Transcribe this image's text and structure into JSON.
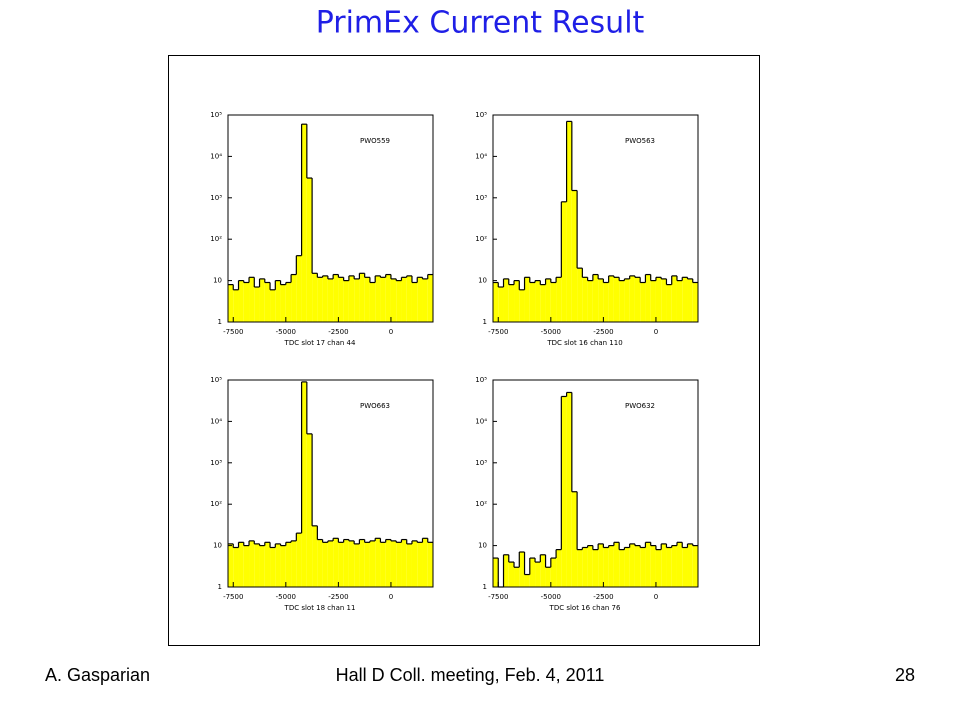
{
  "slide": {
    "title": "PrimEx Current Result",
    "footer": {
      "left": "A. Gasparian",
      "center": "Hall D Coll. meeting, Feb. 4, 2011",
      "right": "28"
    }
  },
  "chart_data": [
    {
      "type": "histogram",
      "title": "PWO559",
      "x_label": "TDC slot 17 chan 44",
      "color": "#ffff00",
      "log_y": true,
      "bins": [
        -7750,
        -7500,
        -7250,
        -7000,
        -6750,
        -6500,
        -6250,
        -6000,
        -5750,
        -5500,
        -5250,
        -5000,
        -4750,
        -4500,
        -4250,
        -4000,
        -3750,
        -3500,
        -3250,
        -3000,
        -2750,
        -2500,
        -2250,
        -2000,
        -1750,
        -1500,
        -1250,
        -1000,
        -750,
        -500,
        -250,
        0,
        250,
        500,
        750,
        1000,
        1250,
        1500,
        1750,
        2000
      ],
      "values": [
        8,
        6,
        10,
        9,
        12,
        7,
        11,
        9,
        6,
        10,
        8,
        9,
        14,
        40,
        60000,
        3000,
        15,
        12,
        13,
        11,
        14,
        12,
        10,
        13,
        11,
        15,
        12,
        9,
        13,
        12,
        14,
        11,
        10,
        12,
        13,
        9,
        12,
        11,
        14
      ],
      "xlim": [
        -7750,
        2000
      ],
      "xticks": [
        -7500,
        -5000,
        -2500,
        0
      ],
      "ylim": [
        1,
        100000
      ],
      "yticks": [
        1,
        10,
        {
          "value": 100,
          "label": "10²"
        },
        {
          "value": 1000,
          "label": "10³"
        },
        {
          "value": 10000,
          "label": "10⁴"
        },
        {
          "value": 100000,
          "label": "10⁵"
        }
      ]
    },
    {
      "type": "histogram",
      "title": "PWO563",
      "x_label": "TDC slot 16 chan 110",
      "color": "#ffff00",
      "log_y": true,
      "bins": [
        -7750,
        -7500,
        -7250,
        -7000,
        -6750,
        -6500,
        -6250,
        -6000,
        -5750,
        -5500,
        -5250,
        -5000,
        -4750,
        -4500,
        -4250,
        -4000,
        -3750,
        -3500,
        -3250,
        -3000,
        -2750,
        -2500,
        -2250,
        -2000,
        -1750,
        -1500,
        -1250,
        -1000,
        -750,
        -500,
        -250,
        0,
        250,
        500,
        750,
        1000,
        1250,
        1500,
        1750,
        2000
      ],
      "values": [
        9,
        7,
        11,
        8,
        10,
        6,
        12,
        9,
        10,
        8,
        11,
        9,
        12,
        800,
        70000,
        1500,
        20,
        12,
        10,
        14,
        11,
        9,
        13,
        12,
        10,
        11,
        13,
        12,
        9,
        14,
        10,
        12,
        11,
        8,
        13,
        10,
        12,
        11,
        9
      ],
      "xlim": [
        -7750,
        2000
      ],
      "xticks": [
        -7500,
        -5000,
        -2500,
        0
      ],
      "ylim": [
        1,
        100000
      ],
      "yticks": [
        1,
        10,
        {
          "value": 100,
          "label": "10²"
        },
        {
          "value": 1000,
          "label": "10³"
        },
        {
          "value": 10000,
          "label": "10⁴"
        },
        {
          "value": 100000,
          "label": "10⁵"
        }
      ]
    },
    {
      "type": "histogram",
      "title": "PWO663",
      "x_label": "TDC slot 18 chan 11",
      "color": "#ffff00",
      "log_y": true,
      "bins": [
        -7750,
        -7500,
        -7250,
        -7000,
        -6750,
        -6500,
        -6250,
        -6000,
        -5750,
        -5500,
        -5250,
        -5000,
        -4750,
        -4500,
        -4250,
        -4000,
        -3750,
        -3500,
        -3250,
        -3000,
        -2750,
        -2500,
        -2250,
        -2000,
        -1750,
        -1500,
        -1250,
        -1000,
        -750,
        -500,
        -250,
        0,
        250,
        500,
        750,
        1000,
        1250,
        1500,
        1750,
        2000
      ],
      "values": [
        11,
        9,
        12,
        10,
        13,
        11,
        10,
        12,
        9,
        11,
        10,
        12,
        13,
        20,
        90000,
        5000,
        30,
        14,
        12,
        13,
        15,
        12,
        14,
        13,
        11,
        14,
        12,
        13,
        15,
        12,
        14,
        13,
        12,
        14,
        11,
        13,
        12,
        15,
        12
      ],
      "xlim": [
        -7750,
        2000
      ],
      "xticks": [
        -7500,
        -5000,
        -2500,
        0
      ],
      "ylim": [
        1,
        100000
      ],
      "yticks": [
        1,
        10,
        {
          "value": 100,
          "label": "10²"
        },
        {
          "value": 1000,
          "label": "10³"
        },
        {
          "value": 10000,
          "label": "10⁴"
        },
        {
          "value": 100000,
          "label": "10⁵"
        }
      ]
    },
    {
      "type": "histogram",
      "title": "PWO632",
      "x_label": "TDC slot 16 chan 76",
      "color": "#ffff00",
      "log_y": true,
      "bins": [
        -7750,
        -7500,
        -7250,
        -7000,
        -6750,
        -6500,
        -6250,
        -6000,
        -5750,
        -5500,
        -5250,
        -5000,
        -4750,
        -4500,
        -4250,
        -4000,
        -3750,
        -3500,
        -3250,
        -3000,
        -2750,
        -2500,
        -2250,
        -2000,
        -1750,
        -1500,
        -1250,
        -1000,
        -750,
        -500,
        -250,
        0,
        250,
        500,
        750,
        1000,
        1250,
        1500,
        1750,
        2000
      ],
      "values": [
        5,
        1,
        6,
        4,
        3,
        7,
        2,
        5,
        4,
        6,
        3,
        5,
        8,
        40000,
        50000,
        200,
        8,
        9,
        10,
        8,
        11,
        9,
        10,
        12,
        8,
        9,
        11,
        10,
        9,
        12,
        10,
        8,
        11,
        9,
        10,
        12,
        9,
        11,
        10
      ],
      "xlim": [
        -7750,
        2000
      ],
      "xticks": [
        -7500,
        -5000,
        -2500,
        0
      ],
      "ylim": [
        1,
        100000
      ],
      "yticks": [
        1,
        10,
        {
          "value": 100,
          "label": "10²"
        },
        {
          "value": 1000,
          "label": "10³"
        },
        {
          "value": 10000,
          "label": "10⁴"
        },
        {
          "value": 100000,
          "label": "10⁵"
        }
      ]
    }
  ]
}
